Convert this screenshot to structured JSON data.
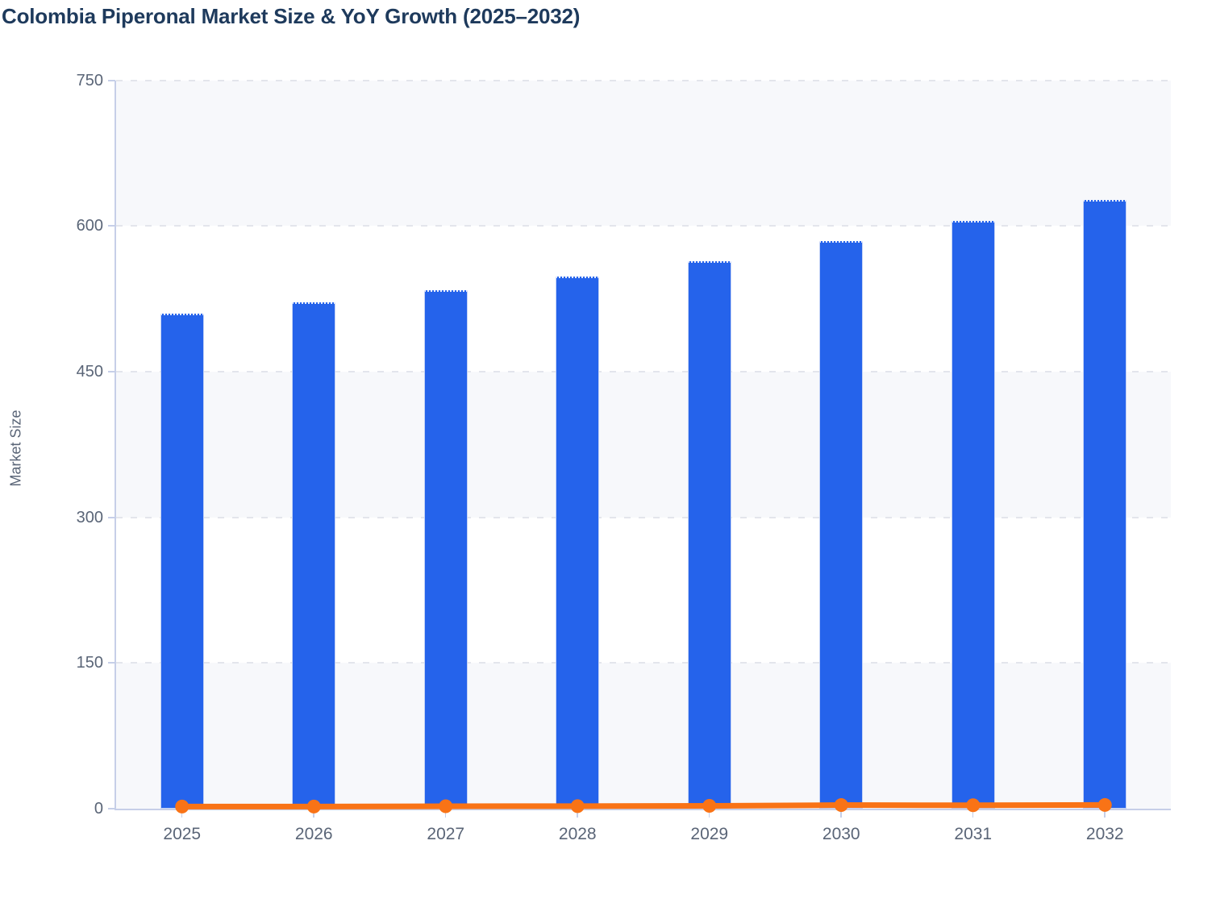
{
  "title": "Colombia Piperonal Market Size & YoY Growth (2025–2032)",
  "chart_data": {
    "type": "bar",
    "title": "Colombia Piperonal Market Size & YoY Growth (2025–2032)",
    "categories": [
      "2025",
      "2026",
      "2027",
      "2028",
      "2029",
      "2030",
      "2031",
      "2032"
    ],
    "series": [
      {
        "name": "Market Size",
        "type": "bar",
        "color": "#2563eb",
        "values": [
          510,
          521,
          534,
          548,
          564,
          584,
          605,
          627
        ]
      },
      {
        "name": "YoY Growth",
        "type": "line",
        "color": "#f97316",
        "values": [
          2.2,
          2.2,
          2.5,
          2.6,
          2.9,
          3.7,
          3.5,
          3.8
        ]
      }
    ],
    "xlabel": "",
    "ylabel": "Market Size",
    "ylim": [
      0,
      750
    ],
    "yticks": [
      0,
      150,
      300,
      450,
      600,
      750
    ],
    "grid": "horizontal dashed",
    "plot_bands": "alternating gray/white between y gridlines",
    "legend": "none",
    "style": {
      "bar_color": "#2563eb",
      "bar_edge": "#c3d2f6",
      "line_color": "#f97316",
      "band_color": "#f7f8fb",
      "grid_color": "#e3e5ec",
      "axis_color": "#c6cfe8",
      "text_color": "#5a6577",
      "title_color": "#1e3a5c",
      "background": "#ffffff"
    }
  }
}
